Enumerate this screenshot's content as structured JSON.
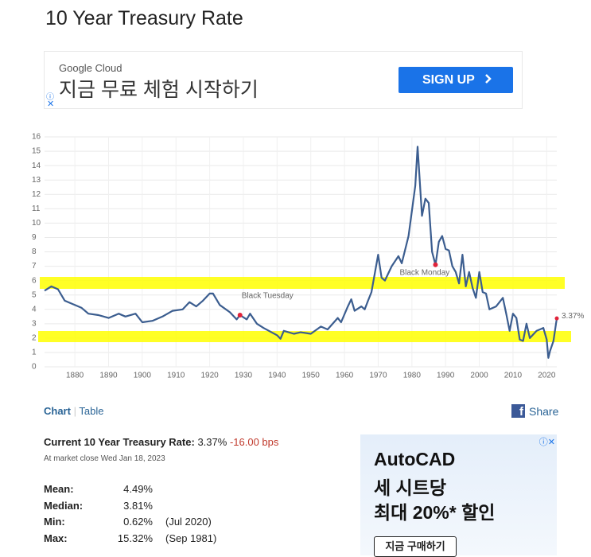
{
  "page_title": "10 Year Treasury Rate",
  "top_ad": {
    "brand": "Google Cloud",
    "headline": "지금 무료 체험 시작하기",
    "button": "SIGN UP"
  },
  "chart_data": {
    "type": "line",
    "color": "#3b5d8f",
    "grid": true,
    "x": [
      1871,
      1873,
      1875,
      1877,
      1880,
      1882,
      1884,
      1887,
      1890,
      1893,
      1895,
      1898,
      1900,
      1903,
      1906,
      1909,
      1912,
      1914,
      1916,
      1918,
      1920,
      1921,
      1923,
      1926,
      1928,
      1929,
      1931,
      1932,
      1934,
      1936,
      1940,
      1941,
      1942,
      1945,
      1947,
      1950,
      1953,
      1955,
      1958,
      1959,
      1961,
      1962,
      1963,
      1965,
      1966,
      1967,
      1968,
      1970,
      1971,
      1972,
      1974,
      1976,
      1977,
      1979,
      1981,
      1981.7,
      1983,
      1984,
      1985,
      1986,
      1987,
      1988,
      1989,
      1990,
      1991,
      1992,
      1993,
      1994,
      1995,
      1996,
      1997,
      1998,
      1999,
      2000,
      2001,
      2002,
      2003,
      2005,
      2007,
      2008,
      2009,
      2010,
      2011,
      2012,
      2013,
      2014,
      2015,
      2017,
      2018,
      2019,
      2020,
      2020.5,
      2021,
      2022,
      2023
    ],
    "values": [
      5.3,
      5.6,
      5.4,
      4.6,
      4.3,
      4.1,
      3.7,
      3.6,
      3.4,
      3.7,
      3.5,
      3.7,
      3.1,
      3.2,
      3.5,
      3.9,
      4.0,
      4.5,
      4.2,
      4.6,
      5.1,
      5.1,
      4.3,
      3.8,
      3.3,
      3.6,
      3.3,
      3.7,
      3.0,
      2.7,
      2.2,
      1.95,
      2.5,
      2.3,
      2.4,
      2.3,
      2.8,
      2.6,
      3.4,
      3.1,
      4.2,
      4.7,
      3.9,
      4.2,
      4.0,
      4.6,
      5.2,
      7.8,
      6.2,
      6.0,
      7.0,
      7.7,
      7.2,
      9.1,
      12.6,
      15.32,
      10.5,
      11.7,
      11.4,
      8.0,
      7.1,
      8.7,
      9.1,
      8.2,
      8.1,
      7.0,
      6.6,
      5.8,
      7.8,
      5.6,
      6.6,
      5.5,
      4.8,
      6.6,
      5.2,
      5.1,
      4.0,
      4.2,
      4.8,
      3.7,
      2.5,
      3.7,
      3.4,
      1.9,
      1.8,
      3.0,
      2.0,
      2.5,
      2.6,
      2.7,
      1.9,
      0.62,
      1.1,
      1.8,
      3.37
    ],
    "value_labels": [
      null,
      null,
      null,
      null,
      null,
      null,
      null,
      null,
      null,
      null,
      null,
      null,
      null,
      null,
      null,
      null,
      null,
      null,
      null,
      null,
      null,
      null,
      null,
      null,
      null,
      null,
      null,
      null,
      null,
      null,
      null,
      null,
      null,
      null,
      null,
      null,
      null,
      null,
      null,
      null,
      null,
      null,
      null,
      null,
      null,
      null,
      null,
      null,
      null,
      null,
      null,
      null,
      null,
      null,
      null,
      null,
      null,
      null,
      null,
      null,
      null,
      null,
      null,
      null,
      null,
      null,
      null,
      null,
      null,
      null,
      null,
      null,
      null,
      null,
      null,
      null,
      null,
      null,
      null,
      null,
      null,
      null,
      null,
      null,
      null,
      null,
      null,
      null,
      null,
      null,
      null,
      null,
      null,
      null,
      "3.37%"
    ],
    "xlim": [
      1871,
      2023
    ],
    "ylim": [
      0,
      16
    ],
    "xticks": [
      1880,
      1890,
      1900,
      1910,
      1920,
      1930,
      1940,
      1950,
      1960,
      1970,
      1980,
      1990,
      2000,
      2010,
      2020
    ],
    "yticks": [
      0,
      1,
      2,
      3,
      4,
      5,
      6,
      7,
      8,
      9,
      10,
      11,
      12,
      13,
      14,
      15,
      16
    ],
    "annotations": [
      {
        "text": "Black Tuesday",
        "x": 1929,
        "y": 3.6
      },
      {
        "text": "Black Monday",
        "x": 1987,
        "y": 7.1
      }
    ]
  },
  "tabs": {
    "chart": "Chart",
    "table": "Table",
    "share": "Share"
  },
  "stats": {
    "current_label": "Current 10 Year Treasury Rate:",
    "current_value": "3.37%",
    "change": "-16.00 bps",
    "as_of": "At market close Wed Jan 18, 2023",
    "rows": [
      [
        "Mean:",
        "4.49%"
      ],
      [
        "Median:",
        "3.81%"
      ],
      [
        "Min:",
        "0.62%",
        "(Jul 2020)"
      ],
      [
        "Max:",
        "15.32%",
        "(Sep 1981)"
      ]
    ]
  },
  "side_ad": {
    "line1": "AutoCAD",
    "line2": "세 시트당",
    "line3": "최대 20%* 할인",
    "button": "지금 구매하기"
  }
}
